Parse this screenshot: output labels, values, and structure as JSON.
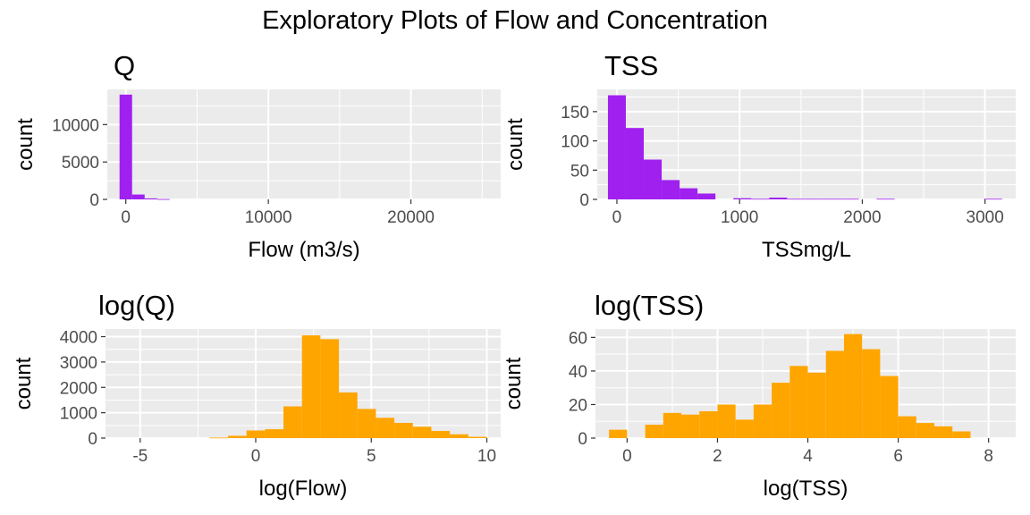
{
  "figure": {
    "title": "Exploratory Plots of Flow and Concentration"
  },
  "colors": {
    "purple": "#a020f0",
    "orange": "#ffa500",
    "panel_bg": "#ebebeb",
    "grid": "#ffffff"
  },
  "chart_data": [
    {
      "type": "bar",
      "title": "Q",
      "xlabel": "Flow (m3/s)",
      "ylabel": "count",
      "color": "purple",
      "xlim": [
        -1300,
        26300
      ],
      "ylim": [
        0,
        14700
      ],
      "xticks": [
        0,
        10000,
        20000
      ],
      "xtick_labels": [
        "0",
        "10000",
        "20000"
      ],
      "yticks": [
        0,
        5000,
        10000
      ],
      "ytick_labels": [
        "0",
        "5000",
        "10000"
      ],
      "bin_width": 880,
      "bins": [
        {
          "x": 0,
          "count": 14000
        },
        {
          "x": 880,
          "count": 650
        },
        {
          "x": 1760,
          "count": 130
        },
        {
          "x": 2640,
          "count": 40
        }
      ],
      "grid": true
    },
    {
      "type": "bar",
      "title": "TSS",
      "xlabel": "TSSmg/L",
      "ylabel": "count",
      "color": "purple",
      "xlim": [
        -160,
        3250
      ],
      "ylim": [
        0,
        188
      ],
      "xticks": [
        0,
        1000,
        2000,
        3000
      ],
      "xtick_labels": [
        "0",
        "1000",
        "2000",
        "3000"
      ],
      "yticks": [
        0,
        50,
        100,
        150
      ],
      "ytick_labels": [
        "0",
        "50",
        "100",
        "150"
      ],
      "bin_width": 146,
      "bins": [
        {
          "x": 0,
          "count": 178
        },
        {
          "x": 146,
          "count": 122
        },
        {
          "x": 292,
          "count": 68
        },
        {
          "x": 438,
          "count": 33
        },
        {
          "x": 584,
          "count": 19
        },
        {
          "x": 730,
          "count": 10
        },
        {
          "x": 1022,
          "count": 2
        },
        {
          "x": 1168,
          "count": 1
        },
        {
          "x": 1314,
          "count": 3
        },
        {
          "x": 1460,
          "count": 1
        },
        {
          "x": 1606,
          "count": 1
        },
        {
          "x": 1752,
          "count": 1
        },
        {
          "x": 1898,
          "count": 1
        },
        {
          "x": 2190,
          "count": 1
        },
        {
          "x": 3066,
          "count": 1
        }
      ],
      "grid": true
    },
    {
      "type": "bar",
      "title": "log(Q)",
      "xlabel": "log(Flow)",
      "ylabel": "count",
      "color": "orange",
      "xlim": [
        -6.5,
        10.6
      ],
      "ylim": [
        0,
        4300
      ],
      "xticks": [
        -5,
        0,
        5,
        10
      ],
      "xtick_labels": [
        "-5",
        "0",
        "5",
        "10"
      ],
      "yticks": [
        0,
        1000,
        2000,
        3000,
        4000
      ],
      "ytick_labels": [
        "0",
        "1000",
        "2000",
        "3000",
        "4000"
      ],
      "bin_width": 0.8,
      "bins": [
        {
          "x": -1.6,
          "count": 20
        },
        {
          "x": -0.8,
          "count": 90
        },
        {
          "x": 0.0,
          "count": 300
        },
        {
          "x": 0.8,
          "count": 350
        },
        {
          "x": 1.6,
          "count": 1250
        },
        {
          "x": 2.4,
          "count": 4050
        },
        {
          "x": 3.2,
          "count": 3900
        },
        {
          "x": 4.0,
          "count": 1800
        },
        {
          "x": 4.8,
          "count": 1150
        },
        {
          "x": 5.6,
          "count": 800
        },
        {
          "x": 6.4,
          "count": 600
        },
        {
          "x": 7.2,
          "count": 450
        },
        {
          "x": 8.0,
          "count": 280
        },
        {
          "x": 8.8,
          "count": 150
        },
        {
          "x": 9.6,
          "count": 50
        }
      ],
      "grid": true
    },
    {
      "type": "bar",
      "title": "log(TSS)",
      "xlabel": "log(TSS)",
      "ylabel": "count",
      "color": "orange",
      "xlim": [
        -0.7,
        8.6
      ],
      "ylim": [
        0,
        65
      ],
      "xticks": [
        0,
        2,
        4,
        6,
        8
      ],
      "xtick_labels": [
        "0",
        "2",
        "4",
        "6",
        "8"
      ],
      "yticks": [
        0,
        20,
        40,
        60
      ],
      "ytick_labels": [
        "0",
        "20",
        "40",
        "60"
      ],
      "bin_width": 0.4,
      "bins": [
        {
          "x": -0.2,
          "count": 5
        },
        {
          "x": 0.2,
          "count": 0
        },
        {
          "x": 0.6,
          "count": 8
        },
        {
          "x": 1.0,
          "count": 15
        },
        {
          "x": 1.4,
          "count": 14
        },
        {
          "x": 1.8,
          "count": 16
        },
        {
          "x": 2.2,
          "count": 20
        },
        {
          "x": 2.6,
          "count": 11
        },
        {
          "x": 3.0,
          "count": 20
        },
        {
          "x": 3.4,
          "count": 33
        },
        {
          "x": 3.8,
          "count": 43
        },
        {
          "x": 4.2,
          "count": 39
        },
        {
          "x": 4.6,
          "count": 52
        },
        {
          "x": 5.0,
          "count": 62
        },
        {
          "x": 5.4,
          "count": 53
        },
        {
          "x": 5.8,
          "count": 37
        },
        {
          "x": 6.2,
          "count": 13
        },
        {
          "x": 6.6,
          "count": 9
        },
        {
          "x": 7.0,
          "count": 7
        },
        {
          "x": 7.4,
          "count": 4
        }
      ],
      "grid": true
    }
  ]
}
